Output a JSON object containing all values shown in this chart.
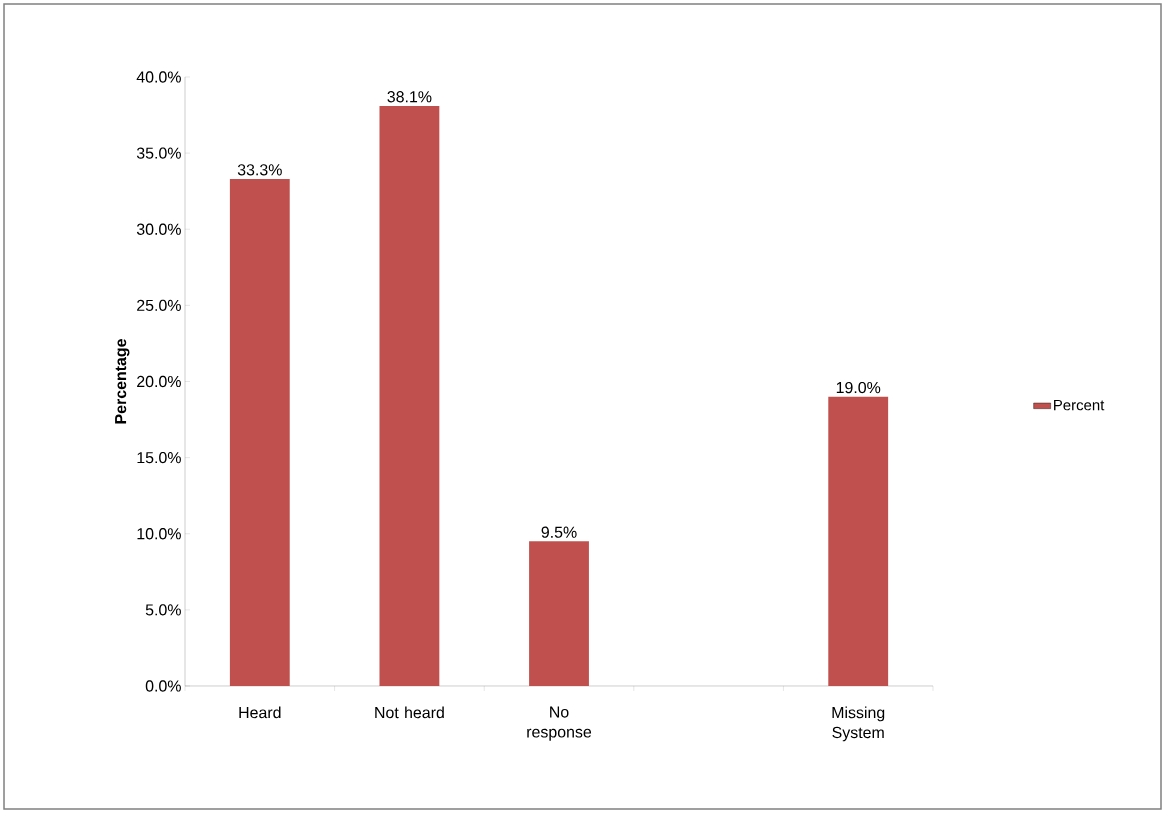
{
  "chart_data": {
    "type": "bar",
    "ylabel": "Percentage",
    "categories": [
      "Heard",
      "Not heard",
      "No response",
      null,
      "Missing System"
    ],
    "series": [
      {
        "name": "Percent",
        "color": "#c0504d",
        "values": [
          33.3,
          38.1,
          9.5,
          null,
          19.0
        ]
      }
    ],
    "value_labels": [
      "33.3%",
      "38.1%",
      "9.5%",
      null,
      "19.0%"
    ],
    "ylim": [
      0,
      40
    ],
    "yticks": [
      {
        "value": 0,
        "label": "0.0%"
      },
      {
        "value": 5,
        "label": "5.0%"
      },
      {
        "value": 10,
        "label": "10.0%"
      },
      {
        "value": 15,
        "label": "15.0%"
      },
      {
        "value": 20,
        "label": "20.0%"
      },
      {
        "value": 25,
        "label": "25.0%"
      },
      {
        "value": 30,
        "label": "30.0%"
      },
      {
        "value": 35,
        "label": "35.0%"
      },
      {
        "value": 40,
        "label": "40.0%"
      }
    ],
    "grid": false,
    "legend": "right"
  }
}
